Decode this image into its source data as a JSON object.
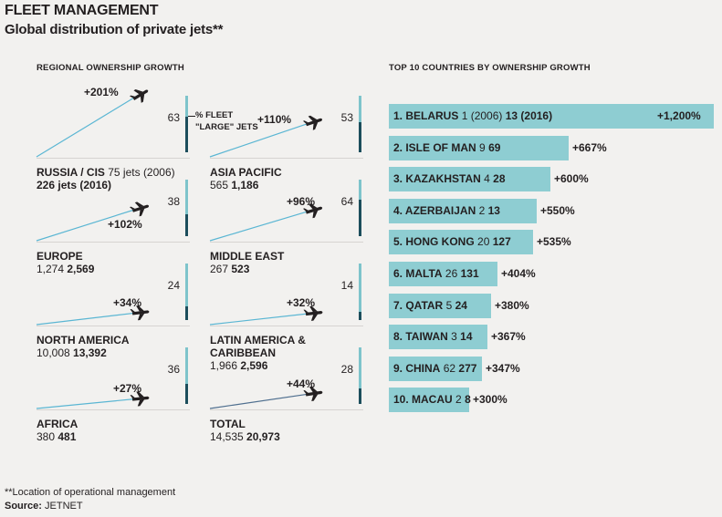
{
  "header": {
    "title": "FLEET MANAGEMENT",
    "subtitle": "Global distribution of private jets**"
  },
  "left_heading": "REGIONAL OWNERSHIP GROWTH",
  "right_heading": "TOP 10 COUNTRIES BY OWNERSHIP GROWTH",
  "fleet_label_line1": "% FLEET",
  "fleet_label_line2": "\"LARGE\" JETS",
  "footnote": "**Location of operational management",
  "source_label": "Source:",
  "source_value": "JETNET",
  "colors": {
    "bar": "#8ecdd2",
    "light_bar": "#7ec4cb",
    "dark_bar": "#1c4e5c",
    "growth_line": "#5ab6d3",
    "growth_line_total": "#4f6f8f",
    "jet": "#231f20",
    "text": "#231f20"
  },
  "chart_data": [
    {
      "type": "line",
      "title": "REGIONAL OWNERSHIP GROWTH",
      "regions": [
        {
          "name": "RUSSIA / CIS",
          "jets_2006_text": "75 jets (2006)",
          "jets_2016_text": "226 jets (2016)",
          "jets_2006": 75,
          "jets_2016": 226,
          "growth": "+201%",
          "growth_value": 201,
          "large_jets_pct": 63
        },
        {
          "name": "ASIA PACIFIC",
          "jets_2006_text": "565",
          "jets_2016_text": "1,186",
          "jets_2006": 565,
          "jets_2016": 1186,
          "growth": "+110%",
          "growth_value": 110,
          "large_jets_pct": 53
        },
        {
          "name": "EUROPE",
          "jets_2006_text": "1,274",
          "jets_2016_text": "2,569",
          "jets_2006": 1274,
          "jets_2016": 2569,
          "growth": "+102%",
          "growth_value": 102,
          "large_jets_pct": 38
        },
        {
          "name": "MIDDLE EAST",
          "jets_2006_text": "267",
          "jets_2016_text": "523",
          "jets_2006": 267,
          "jets_2016": 523,
          "growth": "+96%",
          "growth_value": 96,
          "large_jets_pct": 64
        },
        {
          "name": "NORTH AMERICA",
          "jets_2006_text": "10,008",
          "jets_2016_text": "13,392",
          "jets_2006": 10008,
          "jets_2016": 13392,
          "growth": "+34%",
          "growth_value": 34,
          "large_jets_pct": 24
        },
        {
          "name": "LATIN AMERICA & CARIBBEAN",
          "name_line1": "LATIN AMERICA &",
          "name_line2": "CARIBBEAN",
          "jets_2006_text": "1,966",
          "jets_2016_text": "2,596",
          "jets_2006": 1966,
          "jets_2016": 2596,
          "growth": "+32%",
          "growth_value": 32,
          "large_jets_pct": 14
        },
        {
          "name": "AFRICA",
          "jets_2006_text": "380",
          "jets_2016_text": "481",
          "jets_2006": 380,
          "jets_2016": 481,
          "growth": "+27%",
          "growth_value": 27,
          "large_jets_pct": 36
        },
        {
          "name": "TOTAL",
          "jets_2006_text": "14,535",
          "jets_2016_text": "20,973",
          "jets_2006": 14535,
          "jets_2016": 20973,
          "growth": "+44%",
          "growth_value": 44,
          "large_jets_pct": 28
        }
      ]
    },
    {
      "type": "bar",
      "title": "TOP 10 COUNTRIES BY OWNERSHIP GROWTH",
      "countries": [
        {
          "rank": "1.",
          "name": "BELARUS",
          "jets_2006": "1 (2006)",
          "jets_2016": "13 (2016)",
          "growth": "+1,200%",
          "growth_value": 1200
        },
        {
          "rank": "2.",
          "name": "ISLE OF MAN",
          "jets_2006": "9",
          "jets_2016": "69",
          "growth": "+667%",
          "growth_value": 667
        },
        {
          "rank": "3.",
          "name": "KAZAKHSTAN",
          "jets_2006": "4",
          "jets_2016": "28",
          "growth": "+600%",
          "growth_value": 600
        },
        {
          "rank": "4.",
          "name": "AZERBAIJAN",
          "jets_2006": "2",
          "jets_2016": "13",
          "growth": "+550%",
          "growth_value": 550
        },
        {
          "rank": "5.",
          "name": "HONG KONG",
          "jets_2006": "20",
          "jets_2016": "127",
          "growth": "+535%",
          "growth_value": 535
        },
        {
          "rank": "6.",
          "name": "MALTA",
          "jets_2006": "26",
          "jets_2016": "131",
          "growth": "+404%",
          "growth_value": 404
        },
        {
          "rank": "7.",
          "name": "QATAR",
          "jets_2006": "5",
          "jets_2016": "24",
          "growth": "+380%",
          "growth_value": 380
        },
        {
          "rank": "8.",
          "name": "TAIWAN",
          "jets_2006": "3",
          "jets_2016": "14",
          "growth": "+367%",
          "growth_value": 367
        },
        {
          "rank": "9.",
          "name": "CHINA",
          "jets_2006": "62",
          "jets_2016": "277",
          "growth": "+347%",
          "growth_value": 347
        },
        {
          "rank": "10.",
          "name": "MACAU",
          "jets_2006": "2",
          "jets_2016": "8",
          "growth": "+300%",
          "growth_value": 300
        }
      ]
    }
  ]
}
